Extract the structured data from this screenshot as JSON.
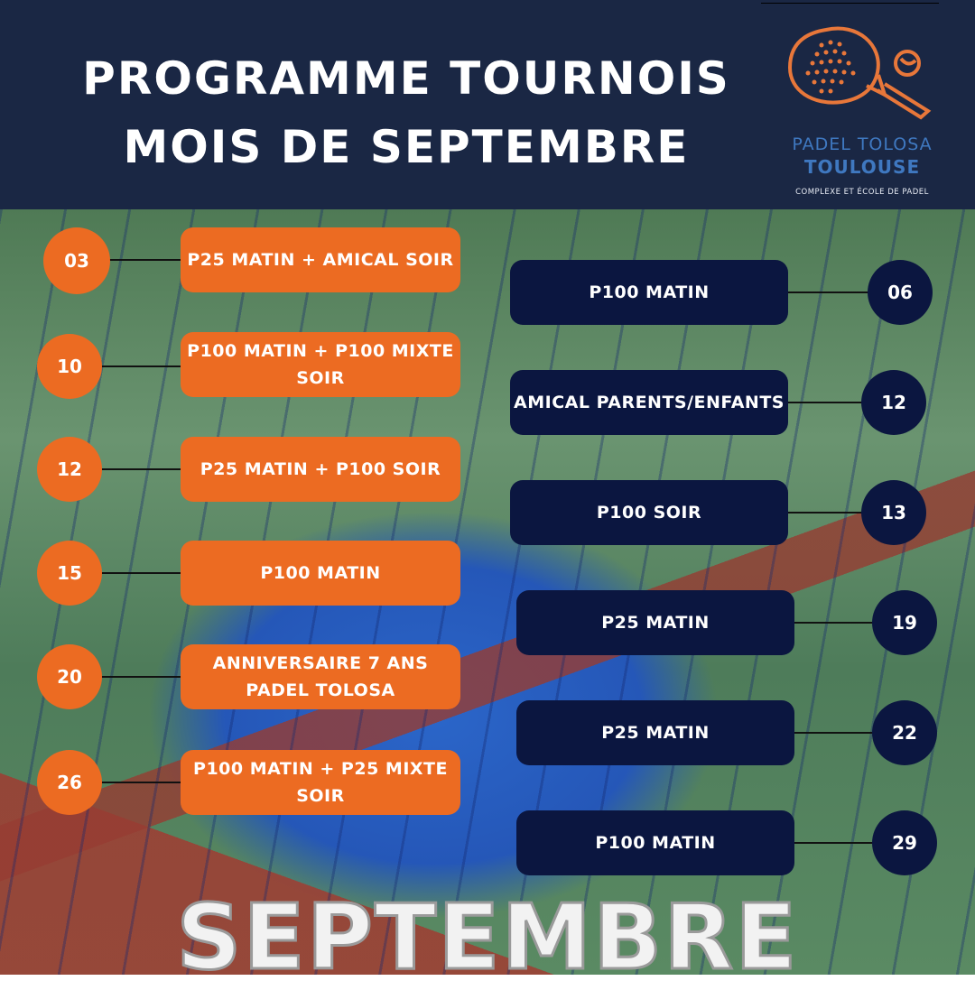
{
  "header": {
    "title_line1": "PROGRAMME TOURNOIS",
    "title_line2": "MOIS DE SEPTEMBRE"
  },
  "logo": {
    "name_line1": "PADEL TOLOSA",
    "name_line2": "TOULOUSE",
    "tagline": "COMPLEXE ET ÉCOLE DE PADEL",
    "icon": "padel-racket-and-ball-icon"
  },
  "colors": {
    "header_bg": "#1a2744",
    "orange": "#ec6b22",
    "navy": "#0b1640",
    "brand_blue": "#3f78c0"
  },
  "left_events": [
    {
      "day": "03",
      "label": "P25 MATIN + AMICAL SOIR"
    },
    {
      "day": "10",
      "label": "P100 MATIN + P100 MIXTE SOIR"
    },
    {
      "day": "12",
      "label": "P25 MATIN + P100 SOIR"
    },
    {
      "day": "15",
      "label": "P100 MATIN"
    },
    {
      "day": "20",
      "label": "ANNIVERSAIRE 7 ANS PADEL TOLOSA"
    },
    {
      "day": "26",
      "label": "P100 MATIN + P25 MIXTE SOIR"
    }
  ],
  "right_events": [
    {
      "day": "06",
      "label": "P100 MATIN"
    },
    {
      "day": "12",
      "label": "AMICAL PARENTS/ENFANTS"
    },
    {
      "day": "13",
      "label": "P100 SOIR"
    },
    {
      "day": "19",
      "label": "P25 MATIN"
    },
    {
      "day": "22",
      "label": "P25 MATIN"
    },
    {
      "day": "29",
      "label": "P100 MATIN"
    }
  ],
  "footer": {
    "month": "SEPTEMBRE"
  }
}
